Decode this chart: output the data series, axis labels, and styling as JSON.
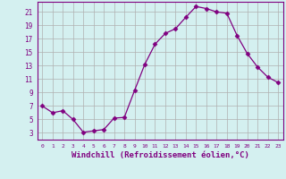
{
  "x": [
    0,
    1,
    2,
    3,
    4,
    5,
    6,
    7,
    8,
    9,
    10,
    11,
    12,
    13,
    14,
    15,
    16,
    17,
    18,
    19,
    20,
    21,
    22,
    23
  ],
  "y": [
    7.0,
    6.0,
    6.3,
    5.0,
    3.1,
    3.3,
    3.5,
    5.2,
    5.3,
    9.3,
    13.2,
    16.2,
    17.8,
    18.5,
    20.2,
    21.8,
    21.5,
    21.0,
    20.8,
    17.5,
    14.8,
    12.8,
    11.3,
    10.5
  ],
  "line_color": "#800080",
  "marker": "D",
  "marker_size": 2.5,
  "bg_color": "#d4f0f0",
  "grid_color": "#b0b0b0",
  "xlabel": "Windchill (Refroidissement éolien,°C)",
  "xlabel_fontsize": 6.5,
  "tick_color": "#800080",
  "xlim": [
    -0.5,
    23.5
  ],
  "ylim": [
    2,
    22.5
  ],
  "yticks": [
    3,
    5,
    7,
    9,
    11,
    13,
    15,
    17,
    19,
    21
  ],
  "xticks": [
    0,
    1,
    2,
    3,
    4,
    5,
    6,
    7,
    8,
    9,
    10,
    11,
    12,
    13,
    14,
    15,
    16,
    17,
    18,
    19,
    20,
    21,
    22,
    23
  ]
}
